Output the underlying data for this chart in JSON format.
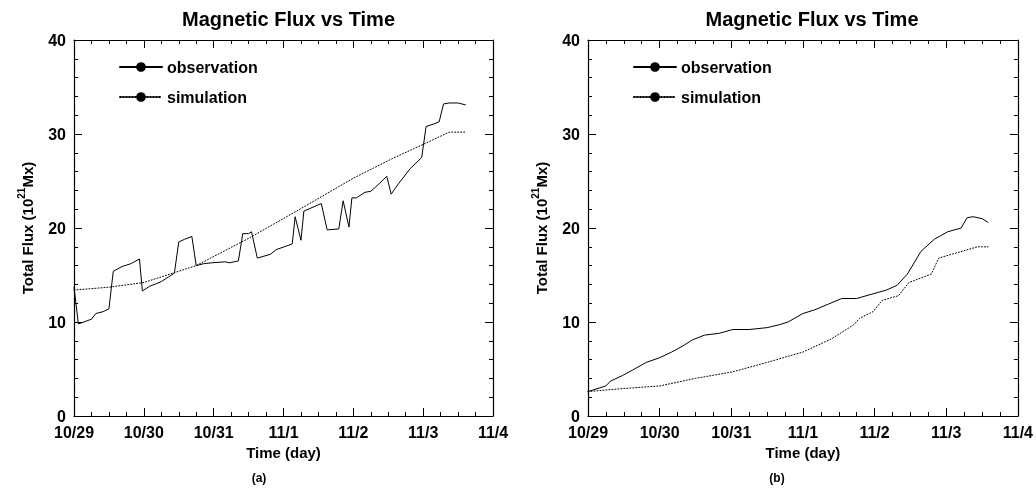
{
  "chart_data": [
    {
      "type": "line",
      "title": "Magnetic Flux vs Time",
      "xlabel": "Time (day)",
      "ylabel": "Total Flux (10$^{21}$Mx)",
      "annotations": [
        "(a)"
      ],
      "xlim": [
        "--10-29",
        "--11-04"
      ],
      "xticks": [
        {
          "value": "--10-29",
          "label": "10/29"
        },
        {
          "value": "--10-30",
          "label": "10/30"
        },
        {
          "value": "--10-31",
          "label": "10/31"
        },
        {
          "value": "--11-01",
          "label": "11/1"
        },
        {
          "value": "--11-02",
          "label": "11/2"
        },
        {
          "value": "--11-03",
          "label": "11/3"
        },
        {
          "value": "--11-04",
          "label": "11/4"
        }
      ],
      "ylim": [
        0,
        40
      ],
      "yticks": [
        0,
        10,
        20,
        30,
        40
      ],
      "grid": false,
      "legend": "top left",
      "marker": "none",
      "series": [
        {
          "name": "observation",
          "color": "#000000",
          "line_style": "solid",
          "x": [
            "--10-29T00:00",
            "--10-29T01:30",
            "--10-29T02:30",
            "--10-29T06:00",
            "--10-29T07:30",
            "--10-29T10:00",
            "--10-29T12:00",
            "--10-29T13:30",
            "--10-29T16:30",
            "--10-29T19:30",
            "--10-29T22:30",
            "--10-29T23:30",
            "--10-30T02:00",
            "--10-30T04:30",
            "--10-30T06:00",
            "--10-30T08:30",
            "--10-30T10:30",
            "--10-30T12:00",
            "--10-30T14:00",
            "--10-30T16:30",
            "--10-30T18:00",
            "--10-30T20:30",
            "--10-30T23:30",
            "--10-31T04:00",
            "--10-31T05:30",
            "--10-31T08:30",
            "--10-31T10:00",
            "--10-31T12:00",
            "--10-31T13:00",
            "--10-31T15:00",
            "--10-31T19:30",
            "--10-31T21:30",
            "--11-01T03:00",
            "--11-01T04:00",
            "--11-01T06:00",
            "--11-01T07:00",
            "--11-01T13:00",
            "--11-01T15:00",
            "--11-01T19:00",
            "--11-01T20:30",
            "--11-01T22:30",
            "--11-01T23:30",
            "--11-02T01:00",
            "--11-02T04:00",
            "--11-02T06:00",
            "--11-02T08:30",
            "--11-02T11:30",
            "--11-02T13:00",
            "--11-02T15:30",
            "--11-02T19:30",
            "--11-02T23:30",
            "--11-03T01:00",
            "--11-03T04:00",
            "--11-03T05:30",
            "--11-03T07:00",
            "--11-03T09:00",
            "--11-03T12:00",
            "--11-03T14:30"
          ],
          "values": [
            13.7,
            9.8,
            9.9,
            10.3,
            10.9,
            11.1,
            11.4,
            15.4,
            15.9,
            16.2,
            16.7,
            13.3,
            13.8,
            14.1,
            14.3,
            14.8,
            15.2,
            18.5,
            18.8,
            19.1,
            16.0,
            16.2,
            16.3,
            16.4,
            16.3,
            16.5,
            19.4,
            19.4,
            19.6,
            16.8,
            17.2,
            17.7,
            18.3,
            21.2,
            18.7,
            21.8,
            22.6,
            19.8,
            19.9,
            22.9,
            20.1,
            23.2,
            23.2,
            23.8,
            23.9,
            24.6,
            25.5,
            23.6,
            24.7,
            26.3,
            27.5,
            30.8,
            31.1,
            31.3,
            33.2,
            33.3,
            33.3,
            33.1
          ]
        },
        {
          "name": "simulation",
          "color": "#000000",
          "line_style": "dotted",
          "x": [
            "--10-29T00:00",
            "--10-29T12:00",
            "--10-30T00:00",
            "--10-30T18:00",
            "--10-31T12:00",
            "--11-01T04:30",
            "--11-02T00:00",
            "--11-02T13:30",
            "--11-03T00:00",
            "--11-03T09:00",
            "--11-03T14:30"
          ],
          "values": [
            13.4,
            13.7,
            14.2,
            16.0,
            18.9,
            21.8,
            25.3,
            27.4,
            28.9,
            30.2,
            30.2
          ]
        }
      ]
    },
    {
      "type": "line",
      "title": "Magnetic Flux vs Time",
      "xlabel": "Time (day)",
      "ylabel": "Total Flux (10$^{21}$Mx)",
      "annotations": [
        "(b)"
      ],
      "xlim": [
        "--10-29",
        "--11-04"
      ],
      "xticks": [
        {
          "value": "--10-29",
          "label": "10/29"
        },
        {
          "value": "--10-30",
          "label": "10/30"
        },
        {
          "value": "--10-31",
          "label": "10/31"
        },
        {
          "value": "--11-01",
          "label": "11/1"
        },
        {
          "value": "--11-02",
          "label": "11/2"
        },
        {
          "value": "--11-03",
          "label": "11/3"
        },
        {
          "value": "--11-04",
          "label": "11/4"
        }
      ],
      "ylim": [
        0,
        40
      ],
      "yticks": [
        0,
        10,
        20,
        30,
        40
      ],
      "grid": false,
      "legend": "top left",
      "marker": "none",
      "series": [
        {
          "name": "observation",
          "color": "#000000",
          "line_style": "solid",
          "x": [
            "--10-29T00:00",
            "--10-29T06:00",
            "--10-29T07:30",
            "--10-29T11:30",
            "--10-29T15:00",
            "--10-29T19:30",
            "--10-30T00:00",
            "--10-30T04:00",
            "--10-30T07:30",
            "--10-30T11:00",
            "--10-30T15:00",
            "--10-30T20:00",
            "--10-31T00:30",
            "--10-31T06:00",
            "--10-31T12:00",
            "--10-31T16:00",
            "--10-31T19:00",
            "--11-01T00:00",
            "--11-01T04:00",
            "--11-01T08:30",
            "--11-01T13:00",
            "--11-01T18:00",
            "--11-01T23:30",
            "--11-02T04:00",
            "--11-02T07:30",
            "--11-02T11:00",
            "--11-02T15:30",
            "--11-02T20:00",
            "--11-03T00:30",
            "--11-03T05:00",
            "--11-03T07:00",
            "--11-03T09:00",
            "--11-03T12:00",
            "--11-03T14:00"
          ],
          "values": [
            2.6,
            3.2,
            3.7,
            4.3,
            4.9,
            5.7,
            6.2,
            6.8,
            7.4,
            8.1,
            8.6,
            8.8,
            9.2,
            9.2,
            9.4,
            9.7,
            10.0,
            10.9,
            11.3,
            11.9,
            12.5,
            12.5,
            13.0,
            13.4,
            13.9,
            15.1,
            17.5,
            18.8,
            19.6,
            20.0,
            21.1,
            21.2,
            21.0,
            20.6
          ]
        },
        {
          "name": "simulation",
          "color": "#000000",
          "line_style": "dotted",
          "x": [
            "--10-29T00:00",
            "--10-29T11:00",
            "--10-30T00:00",
            "--10-30T12:00",
            "--10-31T00:30",
            "--10-31T12:00",
            "--11-01T00:00",
            "--11-01T09:30",
            "--11-01T17:00",
            "--11-01T19:00",
            "--11-01T23:30",
            "--11-02T02:30",
            "--11-02T08:00",
            "--11-02T11:30",
            "--11-02T19:00",
            "--11-02T21:30",
            "--11-03T05:00",
            "--11-03T10:30",
            "--11-03T14:00"
          ],
          "values": [
            2.6,
            2.9,
            3.2,
            4.0,
            4.7,
            5.7,
            6.8,
            8.2,
            9.7,
            10.4,
            11.1,
            12.3,
            12.8,
            14.2,
            15.1,
            16.8,
            17.5,
            18.0,
            18.0
          ]
        }
      ]
    }
  ]
}
